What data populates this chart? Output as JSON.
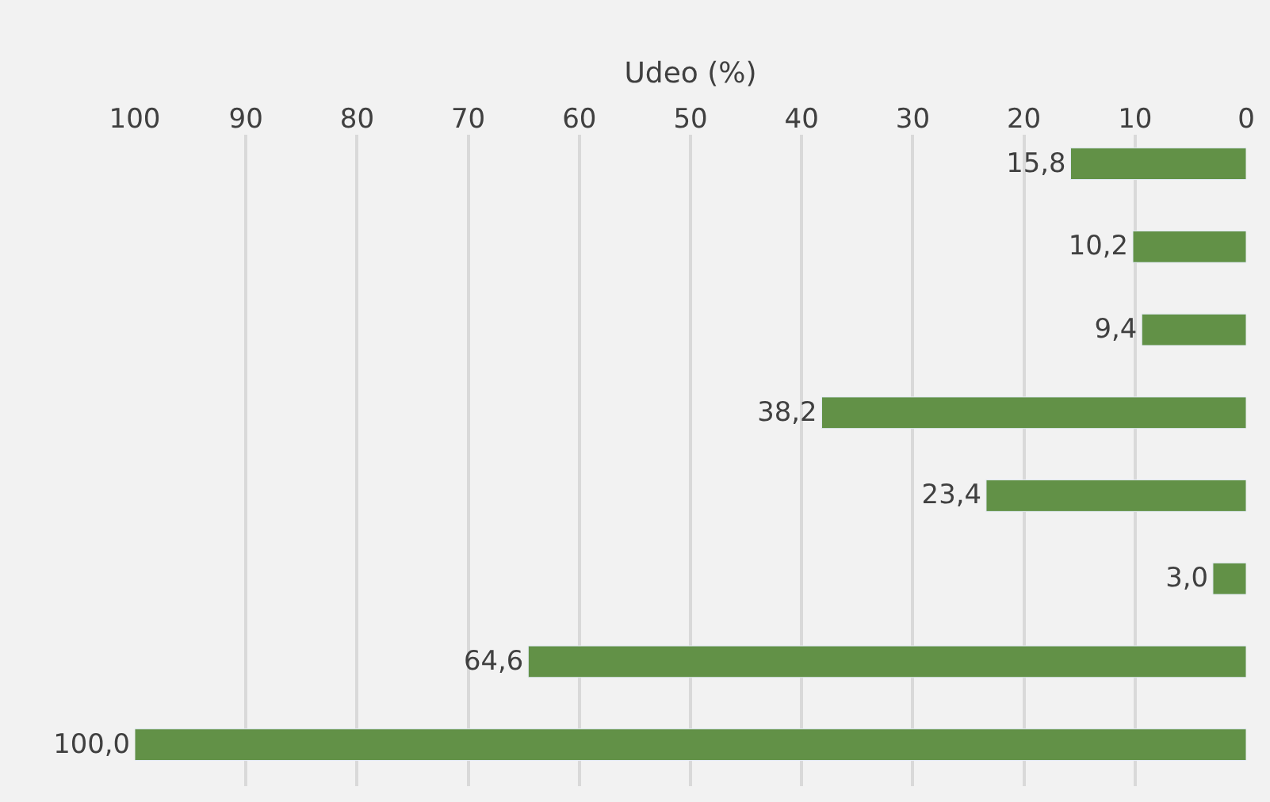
{
  "chart_data": {
    "type": "bar",
    "orientation": "horizontal",
    "xlabel": "Udeo (%)",
    "categories": [
      null,
      null,
      null,
      null,
      null,
      null,
      null,
      null
    ],
    "values": [
      15.8,
      10.2,
      9.4,
      38.2,
      23.4,
      3.0,
      64.6,
      100.0
    ],
    "value_labels": [
      "15,8",
      "10,2",
      "9,4",
      "38,2",
      "23,4",
      "3,0",
      "64,6",
      "100,0"
    ],
    "color": "#629147",
    "xlim": [
      100,
      0
    ],
    "xticks": [
      100,
      90,
      80,
      70,
      60,
      50,
      40,
      30,
      20,
      10,
      0
    ],
    "grid": "x"
  }
}
